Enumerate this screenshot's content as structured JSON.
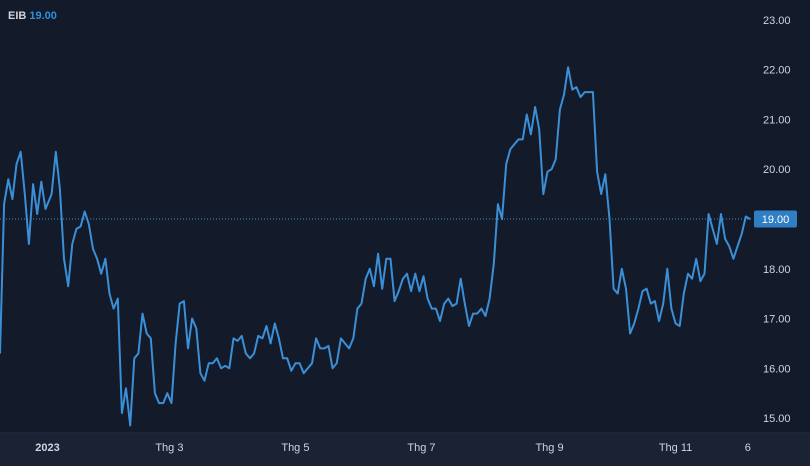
{
  "chart_data": {
    "type": "line",
    "symbol": "EIB",
    "last_value": "19.00",
    "price_label": "19.00",
    "x_tick_labels": [
      {
        "label": "2023",
        "date": "2023-01-01",
        "bold": true
      },
      {
        "label": "Thg 3",
        "date": "2023-03-01",
        "bold": false
      },
      {
        "label": "Thg 5",
        "date": "2023-05-01",
        "bold": false
      },
      {
        "label": "Thg 7",
        "date": "2023-07-01",
        "bold": false
      },
      {
        "label": "Thg 9",
        "date": "2023-09-01",
        "bold": false
      },
      {
        "label": "Thg 11",
        "date": "2023-11-01",
        "bold": false
      },
      {
        "label": "6",
        "date": "2023-12-06",
        "bold": false
      }
    ],
    "y_tick_labels": [
      "15.00",
      "16.00",
      "17.00",
      "18.00",
      "19.00",
      "20.00",
      "21.00",
      "22.00",
      "23.00"
    ],
    "xlim": [
      "2022-12-09",
      "2023-12-08"
    ],
    "ylim": [
      14.7,
      23.4
    ],
    "series": [
      {
        "color": "#3b8fd6",
        "points": [
          [
            "2022-12-09",
            16.3
          ],
          [
            "2022-12-11",
            19.3
          ],
          [
            "2022-12-13",
            19.8
          ],
          [
            "2022-12-15",
            19.4
          ],
          [
            "2022-12-17",
            20.1
          ],
          [
            "2022-12-19",
            20.35
          ],
          [
            "2022-12-21",
            19.5
          ],
          [
            "2022-12-23",
            18.5
          ],
          [
            "2022-12-25",
            19.7
          ],
          [
            "2022-12-27",
            19.1
          ],
          [
            "2022-12-29",
            19.75
          ],
          [
            "2022-12-31",
            19.2
          ],
          [
            "2023-01-03",
            19.5
          ],
          [
            "2023-01-05",
            20.35
          ],
          [
            "2023-01-07",
            19.6
          ],
          [
            "2023-01-09",
            18.2
          ],
          [
            "2023-01-11",
            17.65
          ],
          [
            "2023-01-13",
            18.5
          ],
          [
            "2023-01-15",
            18.8
          ],
          [
            "2023-01-17",
            18.85
          ],
          [
            "2023-01-19",
            19.15
          ],
          [
            "2023-01-21",
            18.9
          ],
          [
            "2023-01-23",
            18.4
          ],
          [
            "2023-01-25",
            18.2
          ],
          [
            "2023-01-27",
            17.9
          ],
          [
            "2023-01-29",
            18.2
          ],
          [
            "2023-01-31",
            17.5
          ],
          [
            "2023-02-02",
            17.2
          ],
          [
            "2023-02-04",
            17.4
          ],
          [
            "2023-02-06",
            15.1
          ],
          [
            "2023-02-08",
            15.6
          ],
          [
            "2023-02-10",
            14.85
          ],
          [
            "2023-02-12",
            16.2
          ],
          [
            "2023-02-14",
            16.3
          ],
          [
            "2023-02-16",
            17.1
          ],
          [
            "2023-02-18",
            16.7
          ],
          [
            "2023-02-20",
            16.6
          ],
          [
            "2023-02-22",
            15.5
          ],
          [
            "2023-02-24",
            15.3
          ],
          [
            "2023-02-26",
            15.3
          ],
          [
            "2023-02-28",
            15.5
          ],
          [
            "2023-03-02",
            15.3
          ],
          [
            "2023-03-04",
            16.5
          ],
          [
            "2023-03-06",
            17.3
          ],
          [
            "2023-03-08",
            17.35
          ],
          [
            "2023-03-10",
            16.4
          ],
          [
            "2023-03-12",
            17.0
          ],
          [
            "2023-03-14",
            16.8
          ],
          [
            "2023-03-16",
            15.9
          ],
          [
            "2023-03-18",
            15.75
          ],
          [
            "2023-03-20",
            16.1
          ],
          [
            "2023-03-22",
            16.1
          ],
          [
            "2023-03-24",
            16.2
          ],
          [
            "2023-03-26",
            16.0
          ],
          [
            "2023-03-28",
            16.05
          ],
          [
            "2023-03-30",
            16.0
          ],
          [
            "2023-04-01",
            16.6
          ],
          [
            "2023-04-03",
            16.55
          ],
          [
            "2023-04-05",
            16.65
          ],
          [
            "2023-04-07",
            16.3
          ],
          [
            "2023-04-09",
            16.2
          ],
          [
            "2023-04-11",
            16.3
          ],
          [
            "2023-04-13",
            16.65
          ],
          [
            "2023-04-15",
            16.6
          ],
          [
            "2023-04-17",
            16.85
          ],
          [
            "2023-04-19",
            16.5
          ],
          [
            "2023-04-21",
            16.9
          ],
          [
            "2023-04-23",
            16.6
          ],
          [
            "2023-04-25",
            16.2
          ],
          [
            "2023-04-27",
            16.2
          ],
          [
            "2023-04-29",
            15.95
          ],
          [
            "2023-05-01",
            16.1
          ],
          [
            "2023-05-03",
            16.1
          ],
          [
            "2023-05-05",
            15.9
          ],
          [
            "2023-05-07",
            16.0
          ],
          [
            "2023-05-09",
            16.1
          ],
          [
            "2023-05-11",
            16.6
          ],
          [
            "2023-05-13",
            16.4
          ],
          [
            "2023-05-15",
            16.4
          ],
          [
            "2023-05-17",
            16.45
          ],
          [
            "2023-05-19",
            16.0
          ],
          [
            "2023-05-21",
            16.1
          ],
          [
            "2023-05-23",
            16.6
          ],
          [
            "2023-05-25",
            16.5
          ],
          [
            "2023-05-27",
            16.4
          ],
          [
            "2023-05-29",
            16.6
          ],
          [
            "2023-05-31",
            17.2
          ],
          [
            "2023-06-02",
            17.3
          ],
          [
            "2023-06-04",
            17.8
          ],
          [
            "2023-06-06",
            18.0
          ],
          [
            "2023-06-08",
            17.65
          ],
          [
            "2023-06-10",
            18.3
          ],
          [
            "2023-06-12",
            17.6
          ],
          [
            "2023-06-14",
            18.2
          ],
          [
            "2023-06-16",
            18.2
          ],
          [
            "2023-06-18",
            17.35
          ],
          [
            "2023-06-20",
            17.55
          ],
          [
            "2023-06-22",
            17.8
          ],
          [
            "2023-06-24",
            17.9
          ],
          [
            "2023-06-26",
            17.55
          ],
          [
            "2023-06-28",
            17.9
          ],
          [
            "2023-06-30",
            17.55
          ],
          [
            "2023-07-02",
            17.85
          ],
          [
            "2023-07-04",
            17.4
          ],
          [
            "2023-07-06",
            17.2
          ],
          [
            "2023-07-08",
            17.2
          ],
          [
            "2023-07-10",
            16.95
          ],
          [
            "2023-07-12",
            17.3
          ],
          [
            "2023-07-14",
            17.4
          ],
          [
            "2023-07-16",
            17.25
          ],
          [
            "2023-07-18",
            17.3
          ],
          [
            "2023-07-20",
            17.8
          ],
          [
            "2023-07-22",
            17.3
          ],
          [
            "2023-07-24",
            16.85
          ],
          [
            "2023-07-26",
            17.1
          ],
          [
            "2023-07-28",
            17.1
          ],
          [
            "2023-07-30",
            17.2
          ],
          [
            "2023-08-01",
            17.05
          ],
          [
            "2023-08-03",
            17.4
          ],
          [
            "2023-08-05",
            18.1
          ],
          [
            "2023-08-07",
            19.3
          ],
          [
            "2023-08-09",
            19.0
          ],
          [
            "2023-08-11",
            20.1
          ],
          [
            "2023-08-13",
            20.4
          ],
          [
            "2023-08-15",
            20.5
          ],
          [
            "2023-08-17",
            20.6
          ],
          [
            "2023-08-19",
            20.6
          ],
          [
            "2023-08-21",
            21.1
          ],
          [
            "2023-08-23",
            20.7
          ],
          [
            "2023-08-25",
            21.25
          ],
          [
            "2023-08-27",
            20.8
          ],
          [
            "2023-08-29",
            19.5
          ],
          [
            "2023-08-31",
            19.95
          ],
          [
            "2023-09-02",
            20.0
          ],
          [
            "2023-09-04",
            20.2
          ],
          [
            "2023-09-06",
            21.2
          ],
          [
            "2023-09-08",
            21.5
          ],
          [
            "2023-09-10",
            22.05
          ],
          [
            "2023-09-12",
            21.6
          ],
          [
            "2023-09-14",
            21.65
          ],
          [
            "2023-09-16",
            21.45
          ],
          [
            "2023-09-18",
            21.55
          ],
          [
            "2023-09-20",
            21.55
          ],
          [
            "2023-09-22",
            21.55
          ],
          [
            "2023-09-24",
            19.95
          ],
          [
            "2023-09-26",
            19.5
          ],
          [
            "2023-09-28",
            19.9
          ],
          [
            "2023-09-30",
            19.0
          ],
          [
            "2023-10-02",
            17.6
          ],
          [
            "2023-10-04",
            17.5
          ],
          [
            "2023-10-06",
            18.0
          ],
          [
            "2023-10-08",
            17.6
          ],
          [
            "2023-10-10",
            16.7
          ],
          [
            "2023-10-12",
            16.9
          ],
          [
            "2023-10-14",
            17.2
          ],
          [
            "2023-10-16",
            17.55
          ],
          [
            "2023-10-18",
            17.6
          ],
          [
            "2023-10-20",
            17.3
          ],
          [
            "2023-10-22",
            17.35
          ],
          [
            "2023-10-24",
            16.95
          ],
          [
            "2023-10-26",
            17.3
          ],
          [
            "2023-10-28",
            18.0
          ],
          [
            "2023-10-30",
            17.2
          ],
          [
            "2023-11-01",
            16.9
          ],
          [
            "2023-11-03",
            16.85
          ],
          [
            "2023-11-05",
            17.5
          ],
          [
            "2023-11-07",
            17.9
          ],
          [
            "2023-11-09",
            17.8
          ],
          [
            "2023-11-11",
            18.2
          ],
          [
            "2023-11-13",
            17.75
          ],
          [
            "2023-11-15",
            17.9
          ],
          [
            "2023-11-17",
            19.1
          ],
          [
            "2023-11-19",
            18.8
          ],
          [
            "2023-11-21",
            18.5
          ],
          [
            "2023-11-23",
            19.1
          ],
          [
            "2023-11-25",
            18.6
          ],
          [
            "2023-11-27",
            18.45
          ],
          [
            "2023-11-29",
            18.2
          ],
          [
            "2023-12-01",
            18.45
          ],
          [
            "2023-12-03",
            18.7
          ],
          [
            "2023-12-05",
            19.05
          ],
          [
            "2023-12-07",
            19.0
          ]
        ]
      }
    ],
    "grid": false,
    "last_value_guide": "dotted"
  },
  "colors": {
    "background": "#131a2a",
    "line": "#3b8fd6",
    "price_label_bg": "#2f7fc4",
    "axis_text": "#d1d4dc",
    "bottom_strip": "#1a2233"
  }
}
